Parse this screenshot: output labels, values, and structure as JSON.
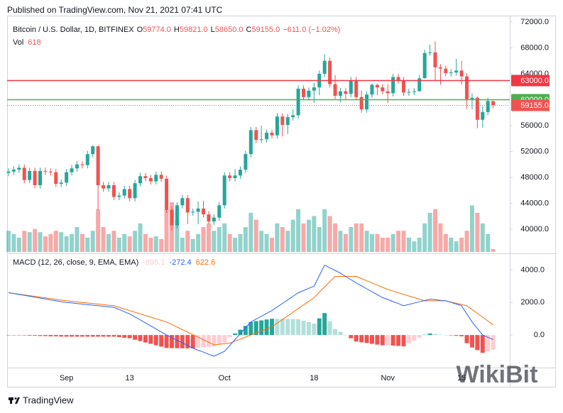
{
  "header": {
    "published": "Published on TradingView.com, Nov 21, 2021 07:41 UTC",
    "brand": "TradingView",
    "watermark": "WikiBit"
  },
  "chart_data": [
    {
      "type": "candlestick",
      "legend": {
        "symbol": "Bitcoin / U.S. Dollar, 1D, BITFINEX",
        "ohlc_keys": [
          "O",
          "H",
          "L",
          "C"
        ],
        "ohlc_value_labels": [
          "59774.0",
          "59821.0",
          "58650.0",
          "59155.0"
        ],
        "change_label": "−611.0 (−1.02%)",
        "volume_key": "Vol"
      },
      "up_color": "#26a69a",
      "down_color": "#ef5350",
      "categories": [
        null,
        null,
        null,
        null,
        null,
        null,
        null,
        null,
        null,
        null,
        null,
        "Sep",
        null,
        null,
        null,
        null,
        null,
        null,
        null,
        null,
        null,
        null,
        null,
        "13",
        null,
        null,
        null,
        null,
        null,
        null,
        null,
        null,
        null,
        null,
        null,
        null,
        null,
        null,
        null,
        null,
        null,
        "Oct",
        null,
        null,
        null,
        null,
        null,
        null,
        null,
        null,
        null,
        null,
        null,
        null,
        null,
        null,
        null,
        null,
        "18",
        null,
        null,
        null,
        null,
        null,
        null,
        null,
        null,
        null,
        null,
        null,
        null,
        null,
        "Nov",
        null,
        null,
        null,
        null,
        null,
        null,
        null,
        null,
        null,
        null,
        null,
        null,
        null,
        "15",
        null,
        null,
        null,
        null,
        null,
        null
      ],
      "open": [
        48700,
        48900,
        49200,
        49500,
        47600,
        49000,
        46800,
        49000,
        48900,
        48800,
        47000,
        47200,
        48800,
        49400,
        50000,
        49900,
        51600,
        52800,
        46800,
        46300,
        46800,
        45000,
        45200,
        46200,
        44800,
        47100,
        48200,
        47900,
        47400,
        48400,
        47800,
        43000,
        40600,
        43700,
        44800,
        42600,
        42700,
        43200,
        42300,
        41200,
        41800,
        43700,
        48300,
        47900,
        48300,
        49200,
        51600,
        55300,
        53800,
        53900,
        54900,
        54500,
        57400,
        56100,
        57300,
        57600,
        61700,
        60400,
        61400,
        61900,
        64000,
        66000,
        62400,
        60600,
        61300,
        60900,
        63000,
        60400,
        58500,
        60800,
        62300,
        61900,
        61300,
        61000,
        63500,
        63000,
        61100,
        61200,
        61300,
        63300,
        67200,
        67300,
        65000,
        64800,
        64100,
        64200,
        64500,
        63600,
        60100,
        60300,
        56900,
        58100,
        59774
      ],
      "high": [
        49400,
        49700,
        50000,
        50000,
        49500,
        49500,
        49500,
        49500,
        49400,
        49300,
        47700,
        49300,
        49900,
        50500,
        50500,
        52100,
        53000,
        53000,
        47300,
        47300,
        47300,
        45700,
        46700,
        46700,
        47600,
        48700,
        48700,
        48400,
        48900,
        48900,
        48300,
        43500,
        44200,
        45300,
        45300,
        43200,
        44300,
        44400,
        42800,
        42300,
        44200,
        48800,
        48800,
        49300,
        49700,
        52100,
        55800,
        55800,
        56000,
        55400,
        55400,
        57900,
        57900,
        57800,
        58500,
        62200,
        62200,
        61900,
        62600,
        64500,
        67000,
        66500,
        63800,
        61800,
        61800,
        63500,
        63500,
        61400,
        61300,
        62500,
        62400,
        62400,
        62400,
        64000,
        64000,
        63500,
        61700,
        61800,
        63800,
        67700,
        68500,
        69000,
        65500,
        65300,
        64700,
        66300,
        66000,
        64100,
        61000,
        60500,
        59000,
        60300,
        59821
      ],
      "low": [
        48200,
        48400,
        48700,
        47100,
        47100,
        46300,
        46300,
        48400,
        48300,
        46500,
        46500,
        46700,
        48300,
        48900,
        49400,
        49400,
        51100,
        43000,
        45800,
        45800,
        44500,
        44500,
        44700,
        44300,
        44300,
        46600,
        47400,
        46900,
        46900,
        47300,
        42500,
        39800,
        40100,
        43200,
        40800,
        42100,
        40800,
        41800,
        40800,
        40700,
        41300,
        43200,
        47400,
        47400,
        47800,
        48700,
        51100,
        53300,
        53300,
        53400,
        54000,
        54000,
        54300,
        54700,
        56800,
        57100,
        59900,
        59900,
        59500,
        60700,
        63500,
        61900,
        60100,
        59600,
        59900,
        60400,
        59900,
        58000,
        58000,
        60300,
        60700,
        60800,
        59500,
        60500,
        62500,
        60600,
        60600,
        60700,
        61300,
        63300,
        66800,
        63000,
        62300,
        63600,
        63600,
        63700,
        62300,
        58600,
        58500,
        55600,
        55700,
        57600,
        58650
      ],
      "close": [
        48900,
        49200,
        49500,
        47600,
        49000,
        46800,
        49000,
        48900,
        48800,
        47000,
        47200,
        48800,
        49400,
        50000,
        49900,
        51600,
        52800,
        46800,
        46300,
        46800,
        45000,
        45200,
        46200,
        44800,
        47100,
        48200,
        47900,
        47400,
        48400,
        47800,
        43000,
        40600,
        43700,
        44800,
        42600,
        42700,
        43200,
        42300,
        41200,
        41800,
        43700,
        48300,
        47900,
        48300,
        49200,
        51600,
        55300,
        53800,
        53900,
        54900,
        54500,
        57400,
        56100,
        57300,
        57600,
        61700,
        60400,
        61400,
        61900,
        64000,
        66000,
        62400,
        60600,
        61300,
        60900,
        63000,
        60400,
        58500,
        60800,
        62300,
        61900,
        61300,
        61000,
        63500,
        63000,
        61100,
        61200,
        61300,
        63300,
        67200,
        67300,
        65000,
        64800,
        64100,
        64200,
        64500,
        63600,
        60100,
        60300,
        56900,
        58100,
        59800,
        59155
      ],
      "volume": [
        4600,
        3900,
        3100,
        4600,
        4300,
        5000,
        4300,
        3400,
        3900,
        4600,
        4300,
        3400,
        3900,
        5400,
        3900,
        3100,
        4600,
        9300,
        5400,
        3900,
        4600,
        3100,
        3900,
        3400,
        4600,
        6200,
        3900,
        3100,
        3400,
        2800,
        9300,
        10800,
        7000,
        3100,
        4600,
        2800,
        3900,
        5400,
        6200,
        4600,
        5400,
        6200,
        3900,
        3100,
        3900,
        5400,
        8500,
        7000,
        4600,
        3900,
        3100,
        6200,
        5400,
        4600,
        7000,
        9300,
        6200,
        7000,
        7800,
        5400,
        9300,
        7800,
        6200,
        4600,
        3900,
        5400,
        6200,
        6200,
        4600,
        3900,
        3900,
        3100,
        3100,
        3900,
        4600,
        4600,
        3100,
        2300,
        3100,
        6200,
        8500,
        9300,
        6200,
        3900,
        3100,
        2300,
        3100,
        4600,
        10100,
        8500,
        6200,
        3900,
        618
      ],
      "levels": [
        {
          "value": 63000,
          "label": "63000.0",
          "color": "#f23645"
        },
        {
          "value": 60000,
          "label": "60000.0",
          "color": "#4caf50"
        }
      ],
      "last_price_label": "59155.0",
      "ylim": [
        36500,
        73200
      ],
      "yticks": [
        {
          "value": 40000,
          "label": "40000.0"
        },
        {
          "value": 44000,
          "label": "44000.0"
        },
        {
          "value": 48000,
          "label": "48000.0"
        },
        {
          "value": 52000,
          "label": "52000.0"
        },
        {
          "value": 56000,
          "label": "56000.0"
        },
        {
          "value": 64000,
          "label": "64000.0"
        },
        {
          "value": 68000,
          "label": "68000.0"
        },
        {
          "value": 72000,
          "label": "72000.0"
        }
      ]
    },
    {
      "type": "macd",
      "title": "MACD (12, 26, close, 9, EMA, EMA)",
      "macd_color": "#2962ff",
      "signal_color": "#ff6d00",
      "hist_colors": [
        "#26a69a",
        "#b2dfdb",
        "#ffcdd2",
        "#ef5350"
      ],
      "histogram": [
        0,
        -5,
        -20,
        -25,
        -40,
        -45,
        -60,
        -65,
        -80,
        -80,
        -95,
        -100,
        -100,
        -100,
        -100,
        -100,
        -100,
        -100,
        -100,
        -100,
        -100,
        -130,
        -170,
        -200,
        -290,
        -370,
        -460,
        -540,
        -630,
        -710,
        -800,
        -805,
        -810,
        -815,
        -820,
        -820,
        -800,
        -760,
        -735,
        -700,
        -580,
        -470,
        -140,
        95,
        330,
        565,
        800,
        855,
        900,
        955,
        1000,
        995,
        990,
        985,
        980,
        975,
        880,
        795,
        700,
        1025,
        1350,
        855,
        370,
        200,
        0,
        -200,
        -400,
        -450,
        -490,
        -540,
        -590,
        -630,
        -620,
        -650,
        -670,
        -700,
        -520,
        -340,
        -160,
        20,
        100,
        70,
        30,
        0,
        -25,
        -50,
        -75,
        -500,
        -765,
        -930,
        -1095,
        -1000,
        -895.1
      ],
      "macd": [
        2600,
        2550,
        2490,
        2440,
        2380,
        2330,
        2270,
        2220,
        2160,
        2110,
        2050,
        2000,
        1970,
        1930,
        1900,
        1870,
        1830,
        1800,
        1770,
        1730,
        1700,
        1570,
        1430,
        1300,
        1110,
        930,
        740,
        560,
        370,
        190,
        0,
        -160,
        -320,
        -480,
        -640,
        -800,
        -930,
        -1050,
        -1180,
        -1300,
        -1150,
        -1000,
        -640,
        -280,
        80,
        440,
        800,
        980,
        1150,
        1330,
        1500,
        1720,
        1940,
        2160,
        2380,
        2600,
        2730,
        2870,
        3000,
        3650,
        4300,
        4130,
        3970,
        3800,
        3600,
        3400,
        3200,
        3020,
        2840,
        2660,
        2480,
        2300,
        2180,
        2050,
        1930,
        1800,
        1880,
        1960,
        2040,
        2120,
        2200,
        2170,
        2130,
        2100,
        2000,
        1900,
        1800,
        1300,
        800,
        400,
        0,
        -140,
        -272.4
      ],
      "signal": [
        2600,
        2555,
        2510,
        2465,
        2420,
        2375,
        2330,
        2285,
        2240,
        2190,
        2145,
        2100,
        2070,
        2030,
        2000,
        1970,
        1930,
        1900,
        1870,
        1830,
        1800,
        1700,
        1600,
        1500,
        1400,
        1300,
        1200,
        1100,
        1000,
        900,
        800,
        645,
        490,
        335,
        180,
        20,
        -130,
        -290,
        -445,
        -600,
        -570,
        -530,
        -500,
        -375,
        -250,
        -125,
        0,
        125,
        250,
        375,
        500,
        725,
        950,
        1175,
        1400,
        1625,
        1850,
        2075,
        2300,
        2625,
        2950,
        3275,
        3600,
        3600,
        3600,
        3600,
        3600,
        3470,
        3330,
        3200,
        3070,
        2930,
        2800,
        2700,
        2600,
        2500,
        2400,
        2300,
        2200,
        2100,
        2100,
        2100,
        2100,
        2100,
        2025,
        1950,
        1875,
        1800,
        1565,
        1330,
        1095,
        860,
        622.6
      ],
      "ylim": [
        -2000,
        4800
      ],
      "yticks": [
        {
          "value": 0,
          "label": "0.0"
        },
        {
          "value": 2000,
          "label": "2000.0"
        },
        {
          "value": 4000,
          "label": "4000.0"
        }
      ]
    }
  ]
}
